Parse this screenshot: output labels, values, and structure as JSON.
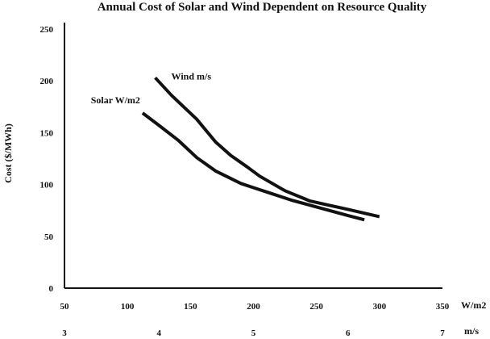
{
  "chart_data": {
    "type": "line",
    "title": "Annual Cost of Solar and Wind Dependent on Resource Quality",
    "ylabel": "Cost ($/MWh)",
    "ylim": [
      0,
      250
    ],
    "yticks": [
      0,
      50,
      100,
      150,
      200,
      250
    ],
    "grid": false,
    "x_axis": {
      "range": [
        50,
        350
      ],
      "ticks": [
        50,
        100,
        150,
        200,
        250,
        300,
        350
      ],
      "unit_label": "W/m2"
    },
    "x_axis_secondary": {
      "range": [
        3,
        7
      ],
      "ticks": [
        3,
        4,
        5,
        6,
        7
      ],
      "unit_label": "m/s"
    },
    "series": [
      {
        "name": "Solar W/m2",
        "axis": "primary",
        "x": [
          112,
          125,
          140,
          155,
          170,
          180,
          190,
          200,
          215,
          230,
          245,
          260,
          275,
          288
        ],
        "values": [
          169,
          157,
          143,
          126,
          113,
          107,
          101,
          97,
          91,
          85,
          80,
          75,
          70,
          66
        ]
      },
      {
        "name": "Wind m/s",
        "axis": "primary",
        "x": [
          122,
          135,
          155,
          170,
          182,
          195,
          205,
          225,
          245,
          260,
          275,
          300
        ],
        "values": [
          203,
          186,
          163,
          141,
          128,
          117,
          108,
          94,
          84,
          80,
          76,
          69
        ]
      }
    ]
  }
}
